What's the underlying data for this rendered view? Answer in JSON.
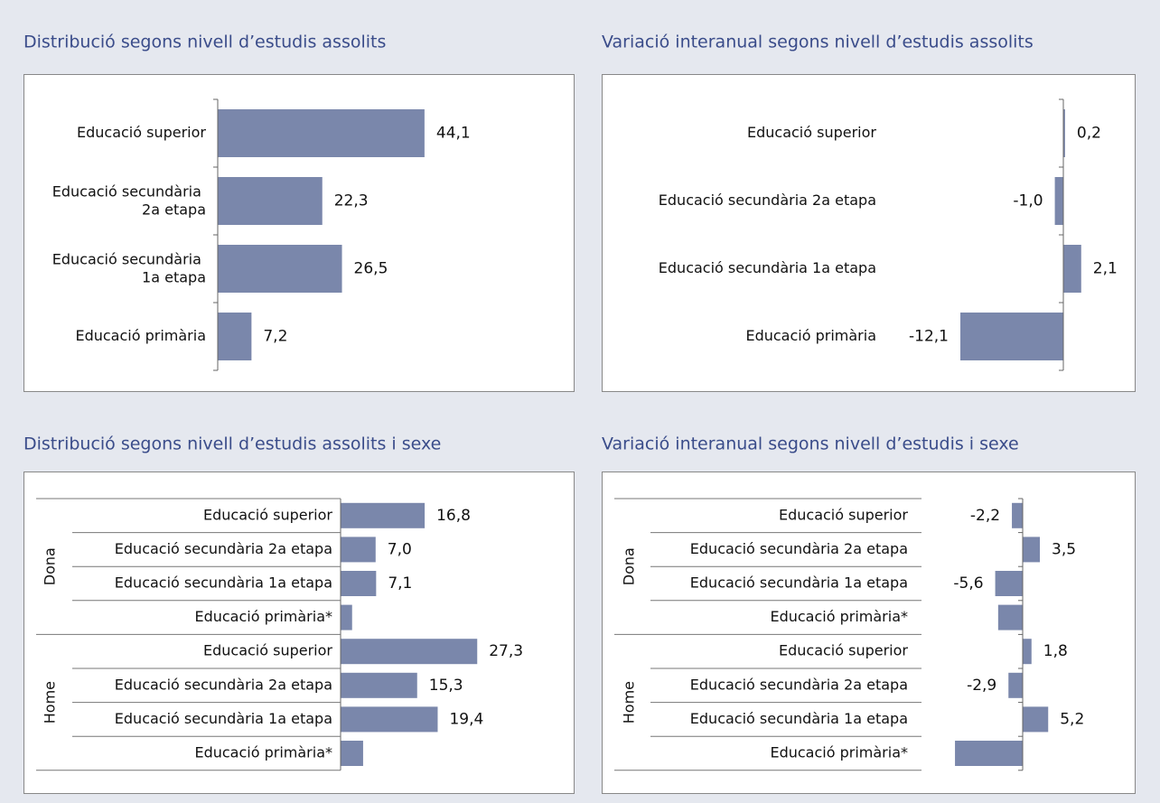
{
  "chart_data": [
    {
      "type": "bar",
      "orientation": "horizontal",
      "title": "Distribució segons nivell d’estudis assolits",
      "color": "#7a87ab",
      "categories": [
        "Educació superior",
        "Educació secundària 2a etapa",
        "Educació secundària 1a etapa",
        "Educació primària"
      ],
      "values": [
        44.1,
        22.3,
        26.5,
        7.2
      ],
      "value_labels": [
        "44,1",
        "22,3",
        "26,5",
        "7,2"
      ]
    },
    {
      "type": "bar",
      "orientation": "horizontal",
      "title": "Variació interanual segons nivell d’estudis assolits",
      "color": "#7a87ab",
      "categories": [
        "Educació superior",
        "Educació secundària 2a etapa",
        "Educació secundària 1a etapa",
        "Educació primària"
      ],
      "values": [
        0.2,
        -1.0,
        2.1,
        -12.1
      ],
      "value_labels": [
        "0,2",
        "-1,0",
        "2,1",
        "-12,1"
      ]
    },
    {
      "type": "bar",
      "orientation": "horizontal",
      "title": "Distribució segons nivell d’estudis assolits i sexe",
      "color": "#7a87ab",
      "groups": [
        {
          "name": "Dona",
          "categories": [
            "Educació superior",
            "Educació secundària 2a etapa",
            "Educació secundària 1a etapa",
            "Educació primària*"
          ],
          "values": [
            16.8,
            7.0,
            7.1,
            2.3
          ],
          "value_labels": [
            "16,8",
            "7,0",
            "7,1",
            null
          ]
        },
        {
          "name": "Home",
          "categories": [
            "Educació superior",
            "Educació secundària 2a etapa",
            "Educació secundària 1a etapa",
            "Educació primària*"
          ],
          "values": [
            27.3,
            15.3,
            19.4,
            4.5
          ],
          "value_labels": [
            "27,3",
            "15,3",
            "19,4",
            null
          ]
        }
      ]
    },
    {
      "type": "bar",
      "orientation": "horizontal",
      "title": "Variació interanual segons nivell d’estudis i sexe",
      "color": "#7a87ab",
      "groups": [
        {
          "name": "Dona",
          "categories": [
            "Educació superior",
            "Educació secundària 2a etapa",
            "Educació secundària 1a etapa",
            "Educació primària*"
          ],
          "values": [
            -2.2,
            3.5,
            -5.6,
            -5.0
          ],
          "value_labels": [
            "-2,2",
            "3,5",
            "-5,6",
            null
          ]
        },
        {
          "name": "Home",
          "categories": [
            "Educació superior",
            "Educació secundària 2a etapa",
            "Educació secundària 1a etapa",
            "Educació primària*"
          ],
          "values": [
            1.8,
            -2.9,
            5.2,
            -13.8
          ],
          "value_labels": [
            "1,8",
            "-2,9",
            "5,2",
            null
          ]
        }
      ]
    }
  ]
}
